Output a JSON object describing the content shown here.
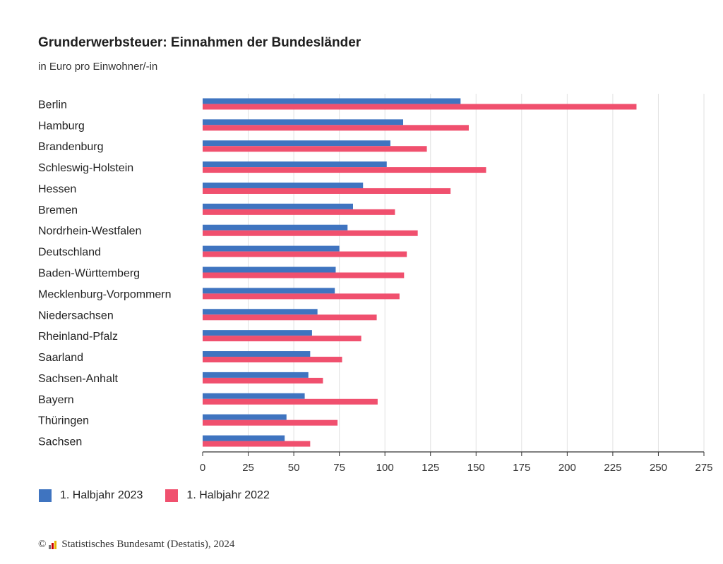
{
  "header": {
    "title": "Grunderwerbsteuer: Einnahmen der Bundesländer",
    "subtitle": "in Euro pro Einwohner/-in"
  },
  "legend": {
    "items": [
      {
        "label": "1. Halbjahr 2023",
        "color": "#3f74c0"
      },
      {
        "label": "1. Halbjahr 2022",
        "color": "#f0506e"
      }
    ]
  },
  "footer": {
    "copyright_symbol": "©",
    "text": "Statistisches Bundesamt (Destatis), 2024"
  },
  "chart_data": {
    "type": "bar",
    "orientation": "horizontal",
    "title": "Grunderwerbsteuer: Einnahmen der Bundesländer",
    "subtitle": "in Euro pro Einwohner/-in",
    "xlabel": "",
    "ylabel": "",
    "xlim": [
      0,
      275
    ],
    "xticks": [
      0,
      25,
      50,
      75,
      100,
      125,
      150,
      175,
      200,
      225,
      250,
      275
    ],
    "grid": true,
    "legend_position": "bottom-left",
    "categories": [
      "Berlin",
      "Hamburg",
      "Brandenburg",
      "Schleswig-Holstein",
      "Hessen",
      "Bremen",
      "Nordrhein-Westfalen",
      "Deutschland",
      "Baden-Württemberg",
      "Mecklenburg-Vorpommern",
      "Niedersachsen",
      "Rheinland-Pfalz",
      "Saarland",
      "Sachsen-Anhalt",
      "Bayern",
      "Thüringen",
      "Sachsen"
    ],
    "series": [
      {
        "name": "1. Halbjahr 2023",
        "color": "#3f74c0",
        "values": [
          141.5,
          110,
          103,
          101,
          88,
          82.5,
          79.5,
          75,
          73,
          72.5,
          63,
          60,
          59,
          58,
          56,
          46,
          45
        ]
      },
      {
        "name": "1. Halbjahr 2022",
        "color": "#f0506e",
        "values": [
          238,
          146,
          123,
          155.5,
          136,
          105.5,
          118,
          112,
          110.5,
          108,
          95.5,
          87,
          76.5,
          66,
          96,
          74,
          59
        ]
      }
    ]
  }
}
